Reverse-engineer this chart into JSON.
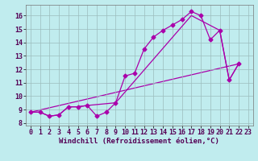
{
  "title": "",
  "xlabel": "Windchill (Refroidissement éolien,°C)",
  "ylabel": "",
  "background_color": "#c0ecee",
  "line_color": "#aa00aa",
  "grid_color": "#9bbcbd",
  "xlim": [
    -0.5,
    23.5
  ],
  "ylim": [
    7.8,
    16.8
  ],
  "yticks": [
    8,
    9,
    10,
    11,
    12,
    13,
    14,
    15,
    16
  ],
  "xticks": [
    0,
    1,
    2,
    3,
    4,
    5,
    6,
    7,
    8,
    9,
    10,
    11,
    12,
    13,
    14,
    15,
    16,
    17,
    18,
    19,
    20,
    21,
    22,
    23
  ],
  "line1_x": [
    0,
    1,
    2,
    3,
    4,
    5,
    6,
    7,
    8,
    9,
    10,
    11,
    12,
    13,
    14,
    15,
    16,
    17,
    18,
    19,
    20,
    21,
    22
  ],
  "line1_y": [
    8.8,
    8.8,
    8.5,
    8.6,
    9.2,
    9.2,
    9.3,
    8.5,
    8.8,
    9.5,
    11.5,
    11.7,
    13.5,
    14.4,
    14.9,
    15.3,
    15.7,
    16.3,
    16.0,
    14.2,
    14.9,
    11.2,
    12.4
  ],
  "line2_x": [
    0,
    1,
    2,
    3,
    4,
    5,
    6,
    9,
    17,
    20,
    21,
    22
  ],
  "line2_y": [
    8.8,
    8.8,
    8.5,
    8.6,
    9.2,
    9.2,
    9.3,
    9.5,
    16.0,
    14.9,
    11.2,
    12.4
  ],
  "line3_x": [
    0,
    22
  ],
  "line3_y": [
    8.8,
    12.4
  ],
  "marker_size": 2.5,
  "line_width": 0.9,
  "font_family": "monospace",
  "xlabel_fontsize": 6.5,
  "tick_fontsize": 6.0,
  "tick_color": "#550055"
}
